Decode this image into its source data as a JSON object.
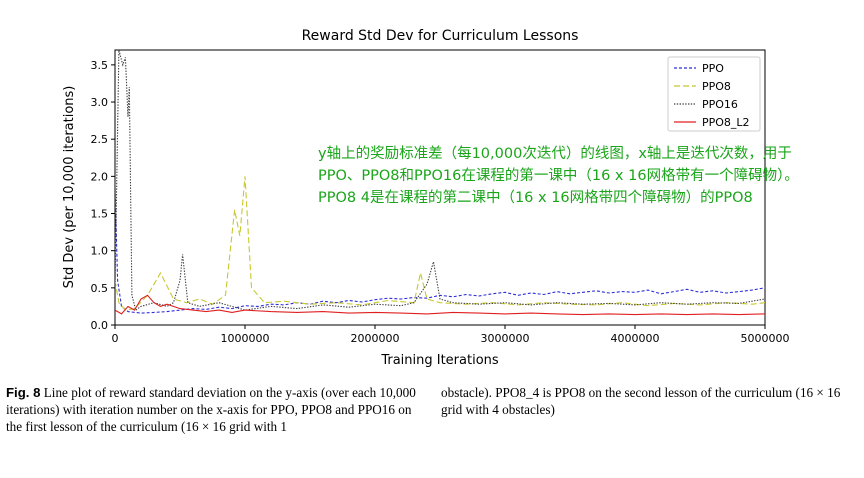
{
  "chart_data": {
    "type": "line",
    "title": "Reward Std Dev for Curriculum Lessons",
    "xlabel": "Training Iterations",
    "ylabel": "Std Dev (per 10,000 iterations)",
    "xlim": [
      0,
      5000000
    ],
    "ylim": [
      0,
      3.7
    ],
    "xticks": [
      0,
      1000000,
      2000000,
      3000000,
      4000000,
      5000000
    ],
    "xtick_labels": [
      "0",
      "1000000",
      "2000000",
      "3000000",
      "4000000",
      "5000000"
    ],
    "yticks": [
      0.0,
      0.5,
      1.0,
      1.5,
      2.0,
      2.5,
      3.0,
      3.5
    ],
    "ytick_labels": [
      "0.0",
      "0.5",
      "1.0",
      "1.5",
      "2.0",
      "2.5",
      "3.0",
      "3.5"
    ],
    "legend_position": "top-right",
    "grid": false,
    "series": [
      {
        "name": "PPO",
        "color": "#2f2fd8",
        "dash": "3,2",
        "x": [
          0,
          20000,
          50000,
          100000,
          200000,
          300000,
          400000,
          500000,
          600000,
          700000,
          800000,
          900000,
          1000000,
          1100000,
          1200000,
          1300000,
          1400000,
          1500000,
          1600000,
          1700000,
          1800000,
          1900000,
          2000000,
          2100000,
          2200000,
          2300000,
          2400000,
          2500000,
          2600000,
          2700000,
          2800000,
          2900000,
          3000000,
          3100000,
          3200000,
          3300000,
          3400000,
          3500000,
          3600000,
          3700000,
          3800000,
          3900000,
          4000000,
          4100000,
          4200000,
          4300000,
          4400000,
          4500000,
          4600000,
          4700000,
          4800000,
          4900000,
          5000000
        ],
        "y": [
          1.9,
          0.6,
          0.25,
          0.18,
          0.16,
          0.17,
          0.18,
          0.2,
          0.22,
          0.21,
          0.24,
          0.22,
          0.26,
          0.25,
          0.28,
          0.27,
          0.3,
          0.28,
          0.32,
          0.3,
          0.33,
          0.31,
          0.34,
          0.36,
          0.35,
          0.37,
          0.36,
          0.4,
          0.38,
          0.41,
          0.39,
          0.42,
          0.44,
          0.4,
          0.43,
          0.41,
          0.45,
          0.42,
          0.44,
          0.46,
          0.43,
          0.45,
          0.44,
          0.47,
          0.42,
          0.45,
          0.48,
          0.44,
          0.46,
          0.43,
          0.45,
          0.47,
          0.5
        ]
      },
      {
        "name": "PPO8",
        "color": "#c8c832",
        "dash": "6,3",
        "x": [
          0,
          30000,
          80000,
          150000,
          250000,
          350000,
          450000,
          550000,
          650000,
          750000,
          850000,
          920000,
          960000,
          1000000,
          1050000,
          1150000,
          1300000,
          1500000,
          1700000,
          1900000,
          2100000,
          2300000,
          2350000,
          2400000,
          2500000,
          2700000,
          2900000,
          3100000,
          3300000,
          3500000,
          3700000,
          3900000,
          4100000,
          4300000,
          4500000,
          4700000,
          4900000,
          5000000
        ],
        "y": [
          0.6,
          0.3,
          0.2,
          0.22,
          0.4,
          0.7,
          0.35,
          0.3,
          0.35,
          0.28,
          0.4,
          1.55,
          1.2,
          2.0,
          0.5,
          0.3,
          0.32,
          0.28,
          0.3,
          0.27,
          0.33,
          0.3,
          0.7,
          0.35,
          0.3,
          0.28,
          0.3,
          0.27,
          0.3,
          0.28,
          0.27,
          0.3,
          0.26,
          0.29,
          0.27,
          0.3,
          0.28,
          0.3
        ]
      },
      {
        "name": "PPO16",
        "color": "#404040",
        "dash": "1.4,1.4",
        "x": [
          0,
          30000,
          60000,
          80000,
          100000,
          110000,
          130000,
          160000,
          200000,
          300000,
          400000,
          450000,
          500000,
          520000,
          560000,
          650000,
          800000,
          1000000,
          1200000,
          1400000,
          1600000,
          1800000,
          2000000,
          2200000,
          2300000,
          2400000,
          2450000,
          2500000,
          2600000,
          2800000,
          3000000,
          3200000,
          3400000,
          3600000,
          3800000,
          4000000,
          4200000,
          4400000,
          4600000,
          4800000,
          5000000
        ],
        "y": [
          0.5,
          3.7,
          3.5,
          3.6,
          2.8,
          3.2,
          0.4,
          0.2,
          0.25,
          0.3,
          0.25,
          0.3,
          0.6,
          0.95,
          0.3,
          0.25,
          0.3,
          0.2,
          0.25,
          0.22,
          0.27,
          0.24,
          0.28,
          0.26,
          0.3,
          0.55,
          0.85,
          0.35,
          0.3,
          0.28,
          0.3,
          0.27,
          0.3,
          0.28,
          0.29,
          0.27,
          0.3,
          0.28,
          0.3,
          0.29,
          0.35
        ]
      },
      {
        "name": "PPO8_L2",
        "color": "#e02020",
        "dash": "",
        "x": [
          0,
          50000,
          100000,
          150000,
          200000,
          250000,
          300000,
          350000,
          400000,
          500000,
          600000,
          700000,
          800000,
          900000,
          1000000,
          1200000,
          1400000,
          1600000,
          1800000,
          2000000,
          2200000,
          2400000,
          2600000,
          2800000,
          3000000,
          3200000,
          3400000,
          3600000,
          3800000,
          4000000,
          4200000,
          4400000,
          4600000,
          4800000,
          5000000
        ],
        "y": [
          0.2,
          0.15,
          0.25,
          0.2,
          0.35,
          0.4,
          0.3,
          0.25,
          0.28,
          0.22,
          0.2,
          0.18,
          0.2,
          0.17,
          0.2,
          0.18,
          0.17,
          0.18,
          0.16,
          0.17,
          0.16,
          0.15,
          0.17,
          0.16,
          0.15,
          0.16,
          0.15,
          0.14,
          0.15,
          0.14,
          0.15,
          0.14,
          0.15,
          0.14,
          0.15
        ]
      }
    ]
  },
  "annotation": {
    "line1": "y轴上的奖励标准差（每10,000次迭代）的线图，x轴上是迭代次数，用于",
    "line2": "PPO、PPO8和PPO16在课程的第一课中（16 x 16网格带有一个障碍物）。",
    "line3": "PPO8 4是在课程的第二课中（16 x 16网格带四个障碍物）的PPO8"
  },
  "caption": {
    "label": "Fig. 8",
    "left_text": "Line plot of reward standard deviation on the y-axis (over each 10,000 iterations) with iteration number on the x-axis for PPO, PPO8 and PPO16 on the first lesson of the curriculum (16 × 16 grid with 1",
    "right_text": "obstacle). PPO8_4 is PPO8 on the second lesson of the curriculum (16 × 16 grid with 4 obstacles)"
  }
}
